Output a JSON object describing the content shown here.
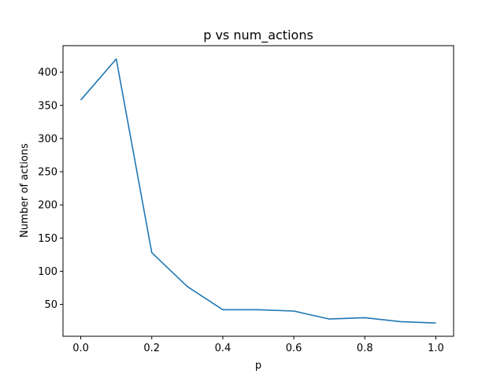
{
  "chart_data": {
    "type": "line",
    "title": "p vs num_actions",
    "xlabel": "p",
    "ylabel": "Number of actions",
    "xlim": [
      -0.05,
      1.05
    ],
    "ylim": [
      2,
      440
    ],
    "xticks": [
      0.0,
      0.2,
      0.4,
      0.6,
      0.8,
      1.0
    ],
    "xtick_labels": [
      "0.0",
      "0.2",
      "0.4",
      "0.6",
      "0.8",
      "1.0"
    ],
    "yticks": [
      50,
      100,
      150,
      200,
      250,
      300,
      350,
      400
    ],
    "ytick_labels": [
      "50",
      "100",
      "150",
      "200",
      "250",
      "300",
      "350",
      "400"
    ],
    "grid": false,
    "series": [
      {
        "color": "#1f77b4",
        "x": [
          0.0,
          0.1,
          0.2,
          0.3,
          0.4,
          0.5,
          0.6,
          0.7,
          0.8,
          0.9,
          1.0
        ],
        "y": [
          358,
          420,
          128,
          77,
          42,
          42,
          40,
          28,
          30,
          24,
          22
        ]
      }
    ]
  }
}
